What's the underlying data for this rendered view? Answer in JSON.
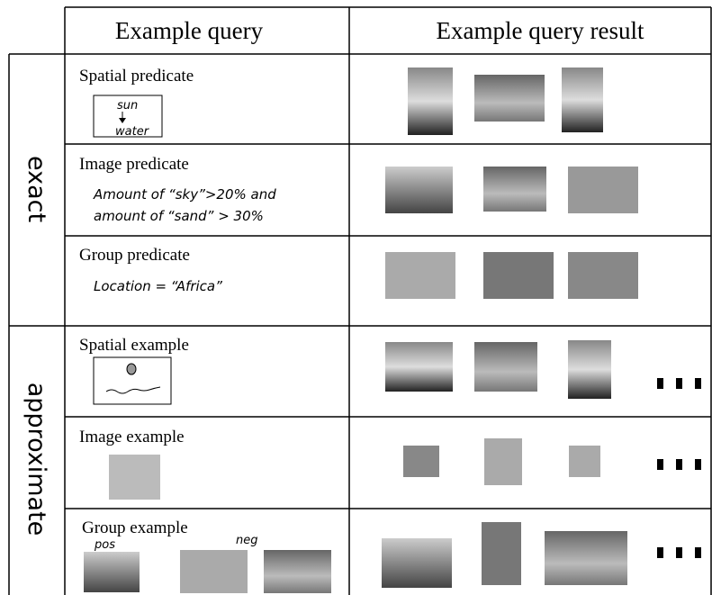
{
  "header": {
    "query": "Example query",
    "result": "Example query result"
  },
  "groups": [
    {
      "label": "exact",
      "rows": [
        {
          "title": "Spatial predicate",
          "sketch": [
            "sun",
            "water"
          ]
        },
        {
          "title": "Image predicate",
          "lines": [
            "Amount of “sky”>20% and",
            "amount of “sand” > 30%"
          ]
        },
        {
          "title": "Group predicate",
          "lines": [
            "Location = “Africa”"
          ]
        }
      ]
    },
    {
      "label": "approximate",
      "rows": [
        {
          "title": "Spatial example"
        },
        {
          "title": "Image example"
        },
        {
          "title": "Group example",
          "labels": [
            "pos",
            "neg"
          ]
        }
      ]
    }
  ]
}
